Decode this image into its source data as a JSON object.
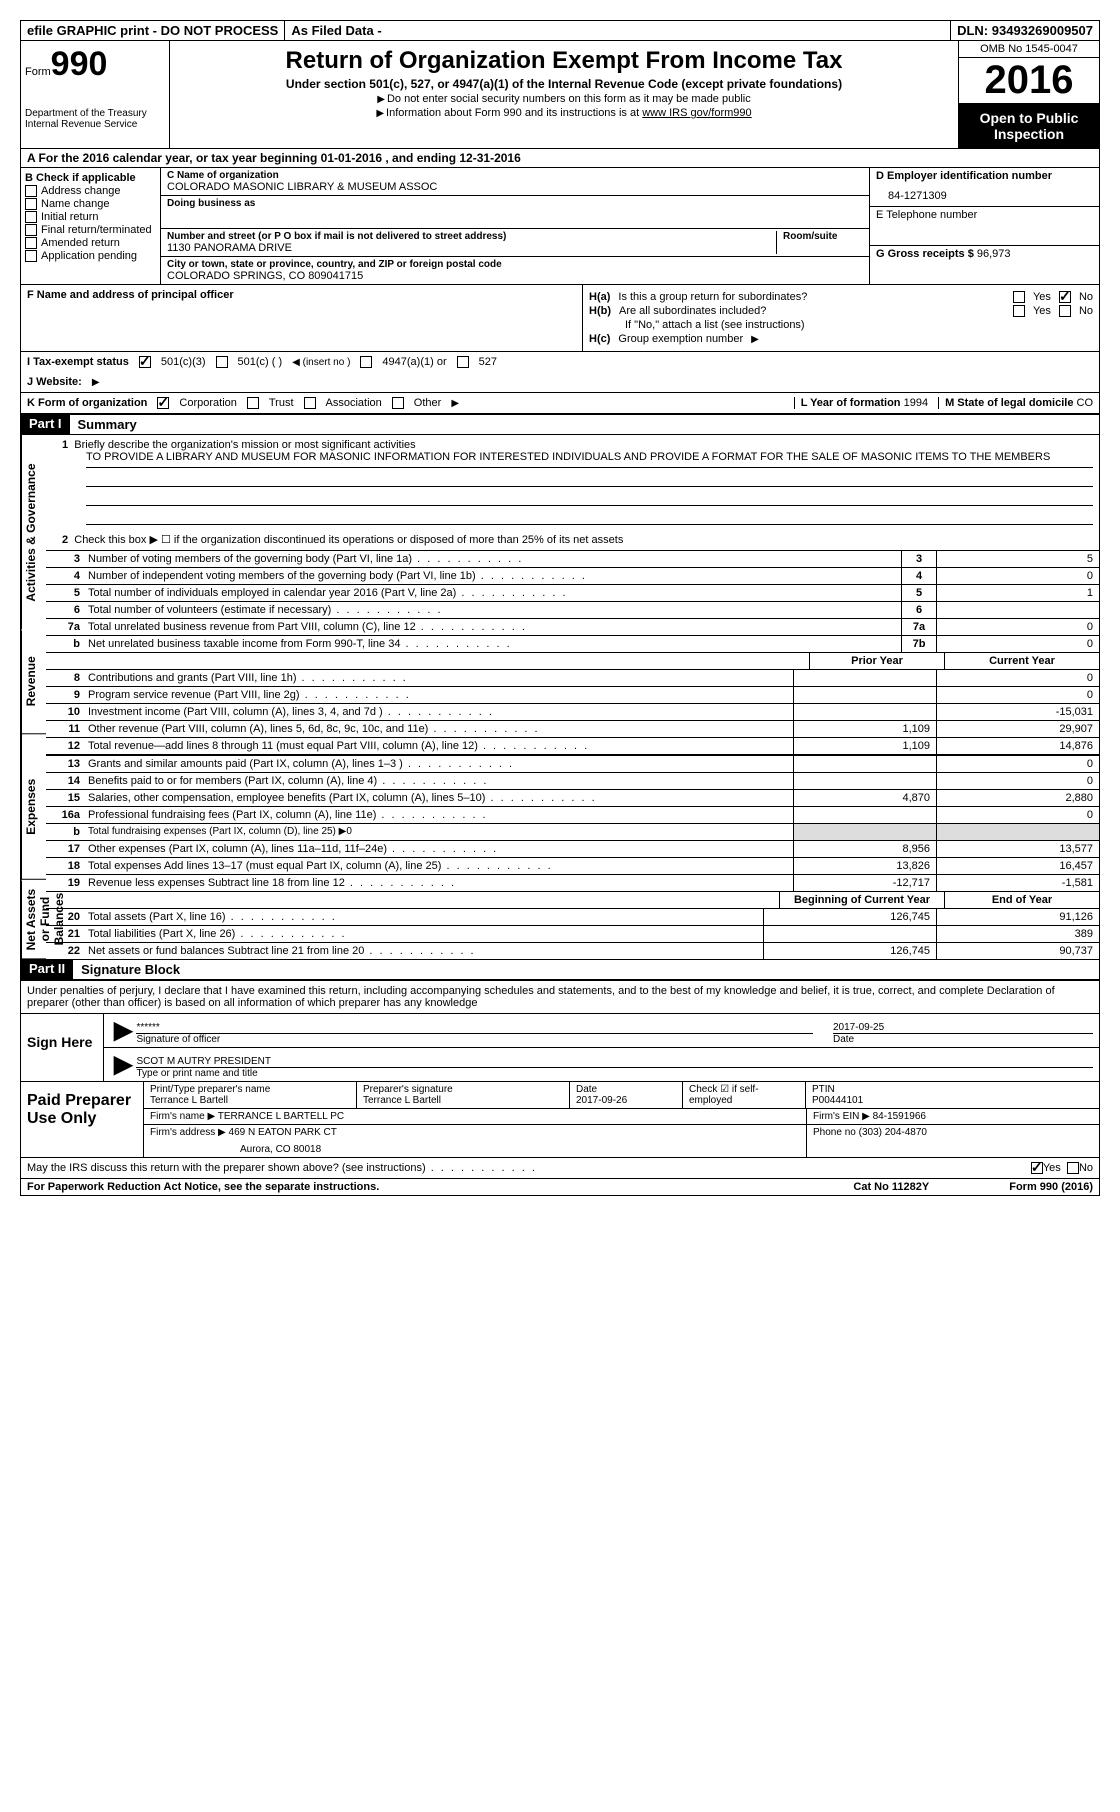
{
  "top": {
    "efile": "efile GRAPHIC print - DO NOT PROCESS",
    "asfiled": "As Filed Data -",
    "dln_label": "DLN:",
    "dln": "93493269009507"
  },
  "header": {
    "form_prefix": "Form",
    "form_number": "990",
    "dept1": "Department of the Treasury",
    "dept2": "Internal Revenue Service",
    "title": "Return of Organization Exempt From Income Tax",
    "subtitle": "Under section 501(c), 527, or 4947(a)(1) of the Internal Revenue Code (except private foundations)",
    "note1": "Do not enter social security numbers on this form as it may be made public",
    "note2": "Information about Form 990 and its instructions is at",
    "note2_link": "www IRS gov/form990",
    "omb": "OMB No  1545-0047",
    "year": "2016",
    "open_public": "Open to Public Inspection"
  },
  "section_a": "A   For the 2016 calendar year, or tax year beginning 01-01-2016   , and ending 12-31-2016",
  "col_b": {
    "header": "B Check if applicable",
    "items": [
      "Address change",
      "Name change",
      "Initial return",
      "Final return/terminated",
      "Amended return",
      "Application pending"
    ]
  },
  "col_c": {
    "name_lbl": "C Name of organization",
    "name": "COLORADO MASONIC LIBRARY & MUSEUM ASSOC",
    "dba_lbl": "Doing business as",
    "dba": "",
    "street_lbl": "Number and street (or P O  box if mail is not delivered to street address)",
    "room_lbl": "Room/suite",
    "street": "1130 PANORAMA DRIVE",
    "city_lbl": "City or town, state or province, country, and ZIP or foreign postal code",
    "city": "COLORADO SPRINGS, CO  809041715"
  },
  "col_de": {
    "d_lbl": "D Employer identification number",
    "ein": "84-1271309",
    "e_lbl": "E Telephone number",
    "phone": "",
    "g_lbl": "G Gross receipts $",
    "gross": "96,973"
  },
  "row_f": {
    "lbl": "F  Name and address of principal officer",
    "val": ""
  },
  "row_h": {
    "ha_lbl": "H(a)",
    "ha_txt": "Is this a group return for subordinates?",
    "hb_lbl": "H(b)",
    "hb_txt": "Are all subordinates included?",
    "hb_note": "If \"No,\" attach a list  (see instructions)",
    "hc_lbl": "H(c)",
    "hc_txt": "Group exemption number",
    "yes": "Yes",
    "no": "No"
  },
  "row_i": {
    "lbl": "I   Tax-exempt status",
    "opt1": "501(c)(3)",
    "opt2": "501(c) (   )",
    "opt2_note": "(insert no )",
    "opt3": "4947(a)(1) or",
    "opt4": "527"
  },
  "row_j": {
    "lbl": "J   Website:",
    "val": ""
  },
  "row_k": {
    "lbl": "K Form of organization",
    "opt1": "Corporation",
    "opt2": "Trust",
    "opt3": "Association",
    "opt4": "Other",
    "l_lbl": "L Year of formation",
    "l_val": "1994",
    "m_lbl": "M State of legal domicile",
    "m_val": "CO"
  },
  "part1": {
    "header_num": "Part I",
    "header_title": "Summary",
    "vert_gov": "Activities & Governance",
    "vert_rev": "Revenue",
    "vert_exp": "Expenses",
    "vert_net": "Net Assets or Fund Balances",
    "line1_lbl": "Briefly describe the organization's mission or most significant activities",
    "mission": "TO PROVIDE A LIBRARY AND MUSEUM FOR MASONIC INFORMATION FOR INTERESTED INDIVIDUALS AND PROVIDE A FORMAT FOR THE SALE OF MASONIC ITEMS TO THE MEMBERS",
    "line2": "Check this box ▶ ☐  if the organization discontinued its operations or disposed of more than 25% of its net assets",
    "lines_gov": [
      {
        "n": "3",
        "d": "Number of voting members of the governing body (Part VI, line 1a)",
        "b": "3",
        "v": "5"
      },
      {
        "n": "4",
        "d": "Number of independent voting members of the governing body (Part VI, line 1b)",
        "b": "4",
        "v": "0"
      },
      {
        "n": "5",
        "d": "Total number of individuals employed in calendar year 2016 (Part V, line 2a)",
        "b": "5",
        "v": "1"
      },
      {
        "n": "6",
        "d": "Total number of volunteers (estimate if necessary)",
        "b": "6",
        "v": ""
      },
      {
        "n": "7a",
        "d": "Total unrelated business revenue from Part VIII, column (C), line 12",
        "b": "7a",
        "v": "0"
      },
      {
        "n": "b",
        "d": "Net unrelated business taxable income from Form 990-T, line 34",
        "b": "7b",
        "v": "0"
      }
    ],
    "col_prior": "Prior Year",
    "col_current": "Current Year",
    "lines_rev": [
      {
        "n": "8",
        "d": "Contributions and grants (Part VIII, line 1h)",
        "p": "",
        "c": "0"
      },
      {
        "n": "9",
        "d": "Program service revenue (Part VIII, line 2g)",
        "p": "",
        "c": "0"
      },
      {
        "n": "10",
        "d": "Investment income (Part VIII, column (A), lines 3, 4, and 7d )",
        "p": "",
        "c": "-15,031"
      },
      {
        "n": "11",
        "d": "Other revenue (Part VIII, column (A), lines 5, 6d, 8c, 9c, 10c, and 11e)",
        "p": "1,109",
        "c": "29,907"
      },
      {
        "n": "12",
        "d": "Total revenue—add lines 8 through 11 (must equal Part VIII, column (A), line 12)",
        "p": "1,109",
        "c": "14,876"
      }
    ],
    "lines_exp": [
      {
        "n": "13",
        "d": "Grants and similar amounts paid (Part IX, column (A), lines 1–3 )",
        "p": "",
        "c": "0"
      },
      {
        "n": "14",
        "d": "Benefits paid to or for members (Part IX, column (A), line 4)",
        "p": "",
        "c": "0"
      },
      {
        "n": "15",
        "d": "Salaries, other compensation, employee benefits (Part IX, column (A), lines 5–10)",
        "p": "4,870",
        "c": "2,880"
      },
      {
        "n": "16a",
        "d": "Professional fundraising fees (Part IX, column (A), line 11e)",
        "p": "",
        "c": "0"
      },
      {
        "n": "b",
        "d": "Total fundraising expenses (Part IX, column (D), line 25) ▶0",
        "p": null,
        "c": null
      },
      {
        "n": "17",
        "d": "Other expenses (Part IX, column (A), lines 11a–11d, 11f–24e)",
        "p": "8,956",
        "c": "13,577"
      },
      {
        "n": "18",
        "d": "Total expenses  Add lines 13–17 (must equal Part IX, column (A), line 25)",
        "p": "13,826",
        "c": "16,457"
      },
      {
        "n": "19",
        "d": "Revenue less expenses  Subtract line 18 from line 12",
        "p": "-12,717",
        "c": "-1,581"
      }
    ],
    "col_begin": "Beginning of Current Year",
    "col_end": "End of Year",
    "lines_net": [
      {
        "n": "20",
        "d": "Total assets (Part X, line 16)",
        "p": "126,745",
        "c": "91,126"
      },
      {
        "n": "21",
        "d": "Total liabilities (Part X, line 26)",
        "p": "",
        "c": "389"
      },
      {
        "n": "22",
        "d": "Net assets or fund balances  Subtract line 21 from line 20",
        "p": "126,745",
        "c": "90,737"
      }
    ]
  },
  "part2": {
    "header_num": "Part II",
    "header_title": "Signature Block",
    "perjury": "Under penalties of perjury, I declare that I have examined this return, including accompanying schedules and statements, and to the best of my knowledge and belief, it is true, correct, and complete  Declaration of preparer (other than officer) is based on all information of which preparer has any knowledge",
    "sign_here": "Sign Here",
    "sig_stars": "******",
    "sig_officer_lbl": "Signature of officer",
    "officer_name": "SCOT M AUTRY PRESIDENT",
    "type_name_lbl": "Type or print name and title",
    "sig_date": "2017-09-25",
    "date_lbl": "Date",
    "paid_prep": "Paid Preparer Use Only",
    "prep_name_lbl": "Print/Type preparer's name",
    "prep_name": "Terrance L Bartell",
    "prep_sig_lbl": "Preparer's signature",
    "prep_sig": "Terrance L Bartell",
    "prep_date_lbl": "Date",
    "prep_date": "2017-09-26",
    "check_self": "Check ☑ if self-employed",
    "ptin_lbl": "PTIN",
    "ptin": "P00444101",
    "firm_name_lbl": "Firm's name     ▶",
    "firm_name": "TERRANCE L BARTELL PC",
    "firm_ein_lbl": "Firm's EIN ▶",
    "firm_ein": "84-1591966",
    "firm_addr_lbl": "Firm's address ▶",
    "firm_addr1": "469 N EATON PARK CT",
    "firm_addr2": "Aurora, CO  80018",
    "phone_lbl": "Phone no",
    "phone": "(303) 204-4870",
    "irs_discuss": "May the IRS discuss this return with the preparer shown above? (see instructions)",
    "yes": "Yes",
    "no": "No"
  },
  "footer": {
    "paperwork": "For Paperwork Reduction Act Notice, see the separate instructions.",
    "cat": "Cat  No  11282Y",
    "form": "Form 990 (2016)"
  }
}
